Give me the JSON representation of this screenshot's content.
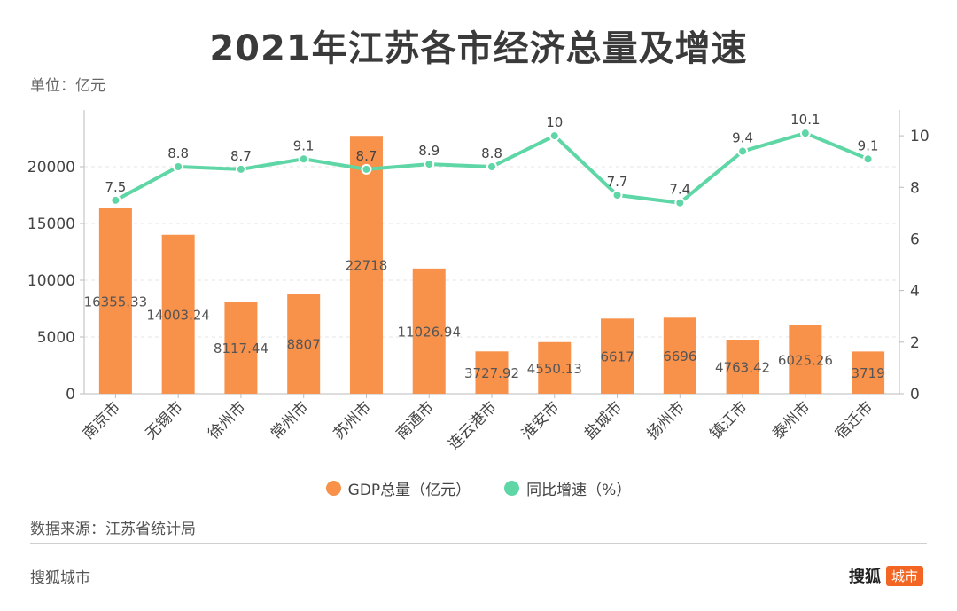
{
  "title": "2021年江苏各市经济总量及增速",
  "unit_label": "单位：亿元",
  "legend": {
    "bar_label": "GDP总量（亿元）",
    "line_label": "同比增速（%）"
  },
  "source": "数据来源：江苏省统计局",
  "footer": {
    "left_text": "搜狐城市",
    "brand_text": "搜狐",
    "brand_badge": "城市"
  },
  "colors": {
    "bar": "#f8914a",
    "line": "#5fd6a6",
    "axis": "#bbbbbb",
    "text": "#444444"
  },
  "chart_data": {
    "type": "bar+line",
    "categories": [
      "南京市",
      "无锡市",
      "徐州市",
      "常州市",
      "苏州市",
      "南通市",
      "连云港市",
      "淮安市",
      "盐城市",
      "扬州市",
      "镇江市",
      "泰州市",
      "宿迁市"
    ],
    "series": [
      {
        "name": "GDP总量（亿元）",
        "type": "bar",
        "axis": "left",
        "values": [
          16355.33,
          14003.24,
          8117.44,
          8807,
          22718,
          11026.94,
          3727.92,
          4550.13,
          6617,
          6696,
          4763.42,
          6025.26,
          3719
        ]
      },
      {
        "name": "同比增速（%）",
        "type": "line",
        "axis": "right",
        "values": [
          7.5,
          8.8,
          8.7,
          9.1,
          8.7,
          8.9,
          8.8,
          10,
          7.7,
          7.4,
          9.4,
          10.1,
          9.1
        ]
      }
    ],
    "bar_value_labels": [
      "16355.33",
      "14003.24",
      "8117.44",
      "8807",
      "22718",
      "11026.94",
      "3727.92",
      "4550.13",
      "6617",
      "6696",
      "4763.42",
      "6025.26",
      "3719"
    ],
    "line_value_labels": [
      "7.5",
      "8.8",
      "8.7",
      "9.1",
      "8.7",
      "8.9",
      "8.8",
      "10",
      "7.7",
      "7.4",
      "9.4",
      "10.1",
      "9.1"
    ],
    "y_left": {
      "range": [
        0,
        25000
      ],
      "ticks": [
        "0",
        "5000",
        "10000",
        "15000",
        "20000"
      ]
    },
    "y_right": {
      "range": [
        0,
        11
      ],
      "ticks": [
        "0",
        "2",
        "4",
        "6",
        "8",
        "10"
      ]
    },
    "grid": true,
    "legend_position": "bottom"
  }
}
